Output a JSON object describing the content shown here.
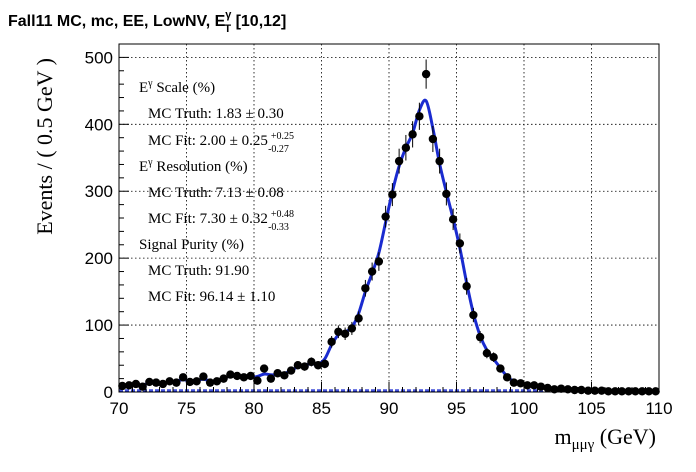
{
  "chart_data": {
    "type": "scatter",
    "title": {
      "main": "Fall11 MC, mc, EE, LowNV, E",
      "sup": "γ",
      "sub": "T",
      "tail": " [10,12]"
    },
    "xlabel": {
      "main": "m",
      "sub": "μμγ",
      "tail": " (GeV)"
    },
    "ylabel": "Events / ( 0.5 GeV )",
    "xlim": [
      70,
      110
    ],
    "ylim": [
      0,
      520
    ],
    "xticks": [
      70,
      75,
      80,
      85,
      90,
      95,
      100,
      105,
      110
    ],
    "yticks": [
      0,
      100,
      200,
      300,
      400,
      500
    ],
    "grid": true,
    "colors": {
      "fit": "#1a2bd0",
      "points": "#000000",
      "background_component": "#1a2bd0"
    },
    "series": [
      {
        "kind": "points_with_errors",
        "x": [
          70.25,
          70.75,
          71.25,
          71.75,
          72.25,
          72.75,
          73.25,
          73.75,
          74.25,
          74.75,
          75.25,
          75.75,
          76.25,
          76.75,
          77.25,
          77.75,
          78.25,
          78.75,
          79.25,
          79.75,
          80.25,
          80.75,
          81.25,
          81.75,
          82.25,
          82.75,
          83.25,
          83.75,
          84.25,
          84.75,
          85.25,
          85.75,
          86.25,
          86.75,
          87.25,
          87.75,
          88.25,
          88.75,
          89.25,
          89.75,
          90.25,
          90.75,
          91.25,
          91.75,
          92.25,
          92.75,
          93.25,
          93.75,
          94.25,
          94.75,
          95.25,
          95.75,
          96.25,
          96.75,
          97.25,
          97.75,
          98.25,
          98.75,
          99.25,
          99.75,
          100.25,
          100.75,
          101.25,
          101.75,
          102.25,
          102.75,
          103.25,
          103.75,
          104.25,
          104.75,
          105.25,
          105.75,
          106.25,
          106.75,
          107.25,
          107.75,
          108.25,
          108.75,
          109.25,
          109.75
        ],
        "y": [
          9,
          10,
          12,
          8,
          15,
          14,
          12,
          16,
          14,
          22,
          15,
          16,
          23,
          14,
          16,
          20,
          26,
          24,
          22,
          24,
          17,
          35,
          20,
          28,
          25,
          32,
          40,
          38,
          45,
          40,
          42,
          75,
          90,
          87,
          95,
          110,
          155,
          180,
          195,
          262,
          295,
          345,
          365,
          385,
          412,
          475,
          378,
          345,
          296,
          258,
          222,
          158,
          115,
          82,
          58,
          52,
          35,
          22,
          14,
          13,
          10,
          10,
          8,
          6,
          4,
          5,
          4,
          3,
          3,
          2,
          2,
          2,
          1,
          1,
          1,
          1,
          1,
          1,
          1,
          1
        ]
      }
    ],
    "annotations": [
      {
        "label": "E",
        "sup": "γ",
        "tail": " Scale (%)"
      },
      {
        "indent": true,
        "text": "MC Truth: 1.83 ± 0.30"
      },
      {
        "indent": true,
        "text": "MC Fit: 2.00 ± 0.25",
        "up": "+0.25",
        "down": "-0.27"
      },
      {
        "label": "E",
        "sup": "γ",
        "tail": " Resolution (%)"
      },
      {
        "indent": true,
        "text": "MC Truth: 7.13 ± 0.08"
      },
      {
        "indent": true,
        "text": "MC Fit: 7.30 ± 0.32",
        "up": "+0.48",
        "down": "-0.33"
      },
      {
        "label": "Signal Purity (%)"
      },
      {
        "indent": true,
        "text": "MC Truth: 91.90"
      },
      {
        "indent": true,
        "text": "MC Fit: 96.14 ± 1.10"
      }
    ]
  }
}
